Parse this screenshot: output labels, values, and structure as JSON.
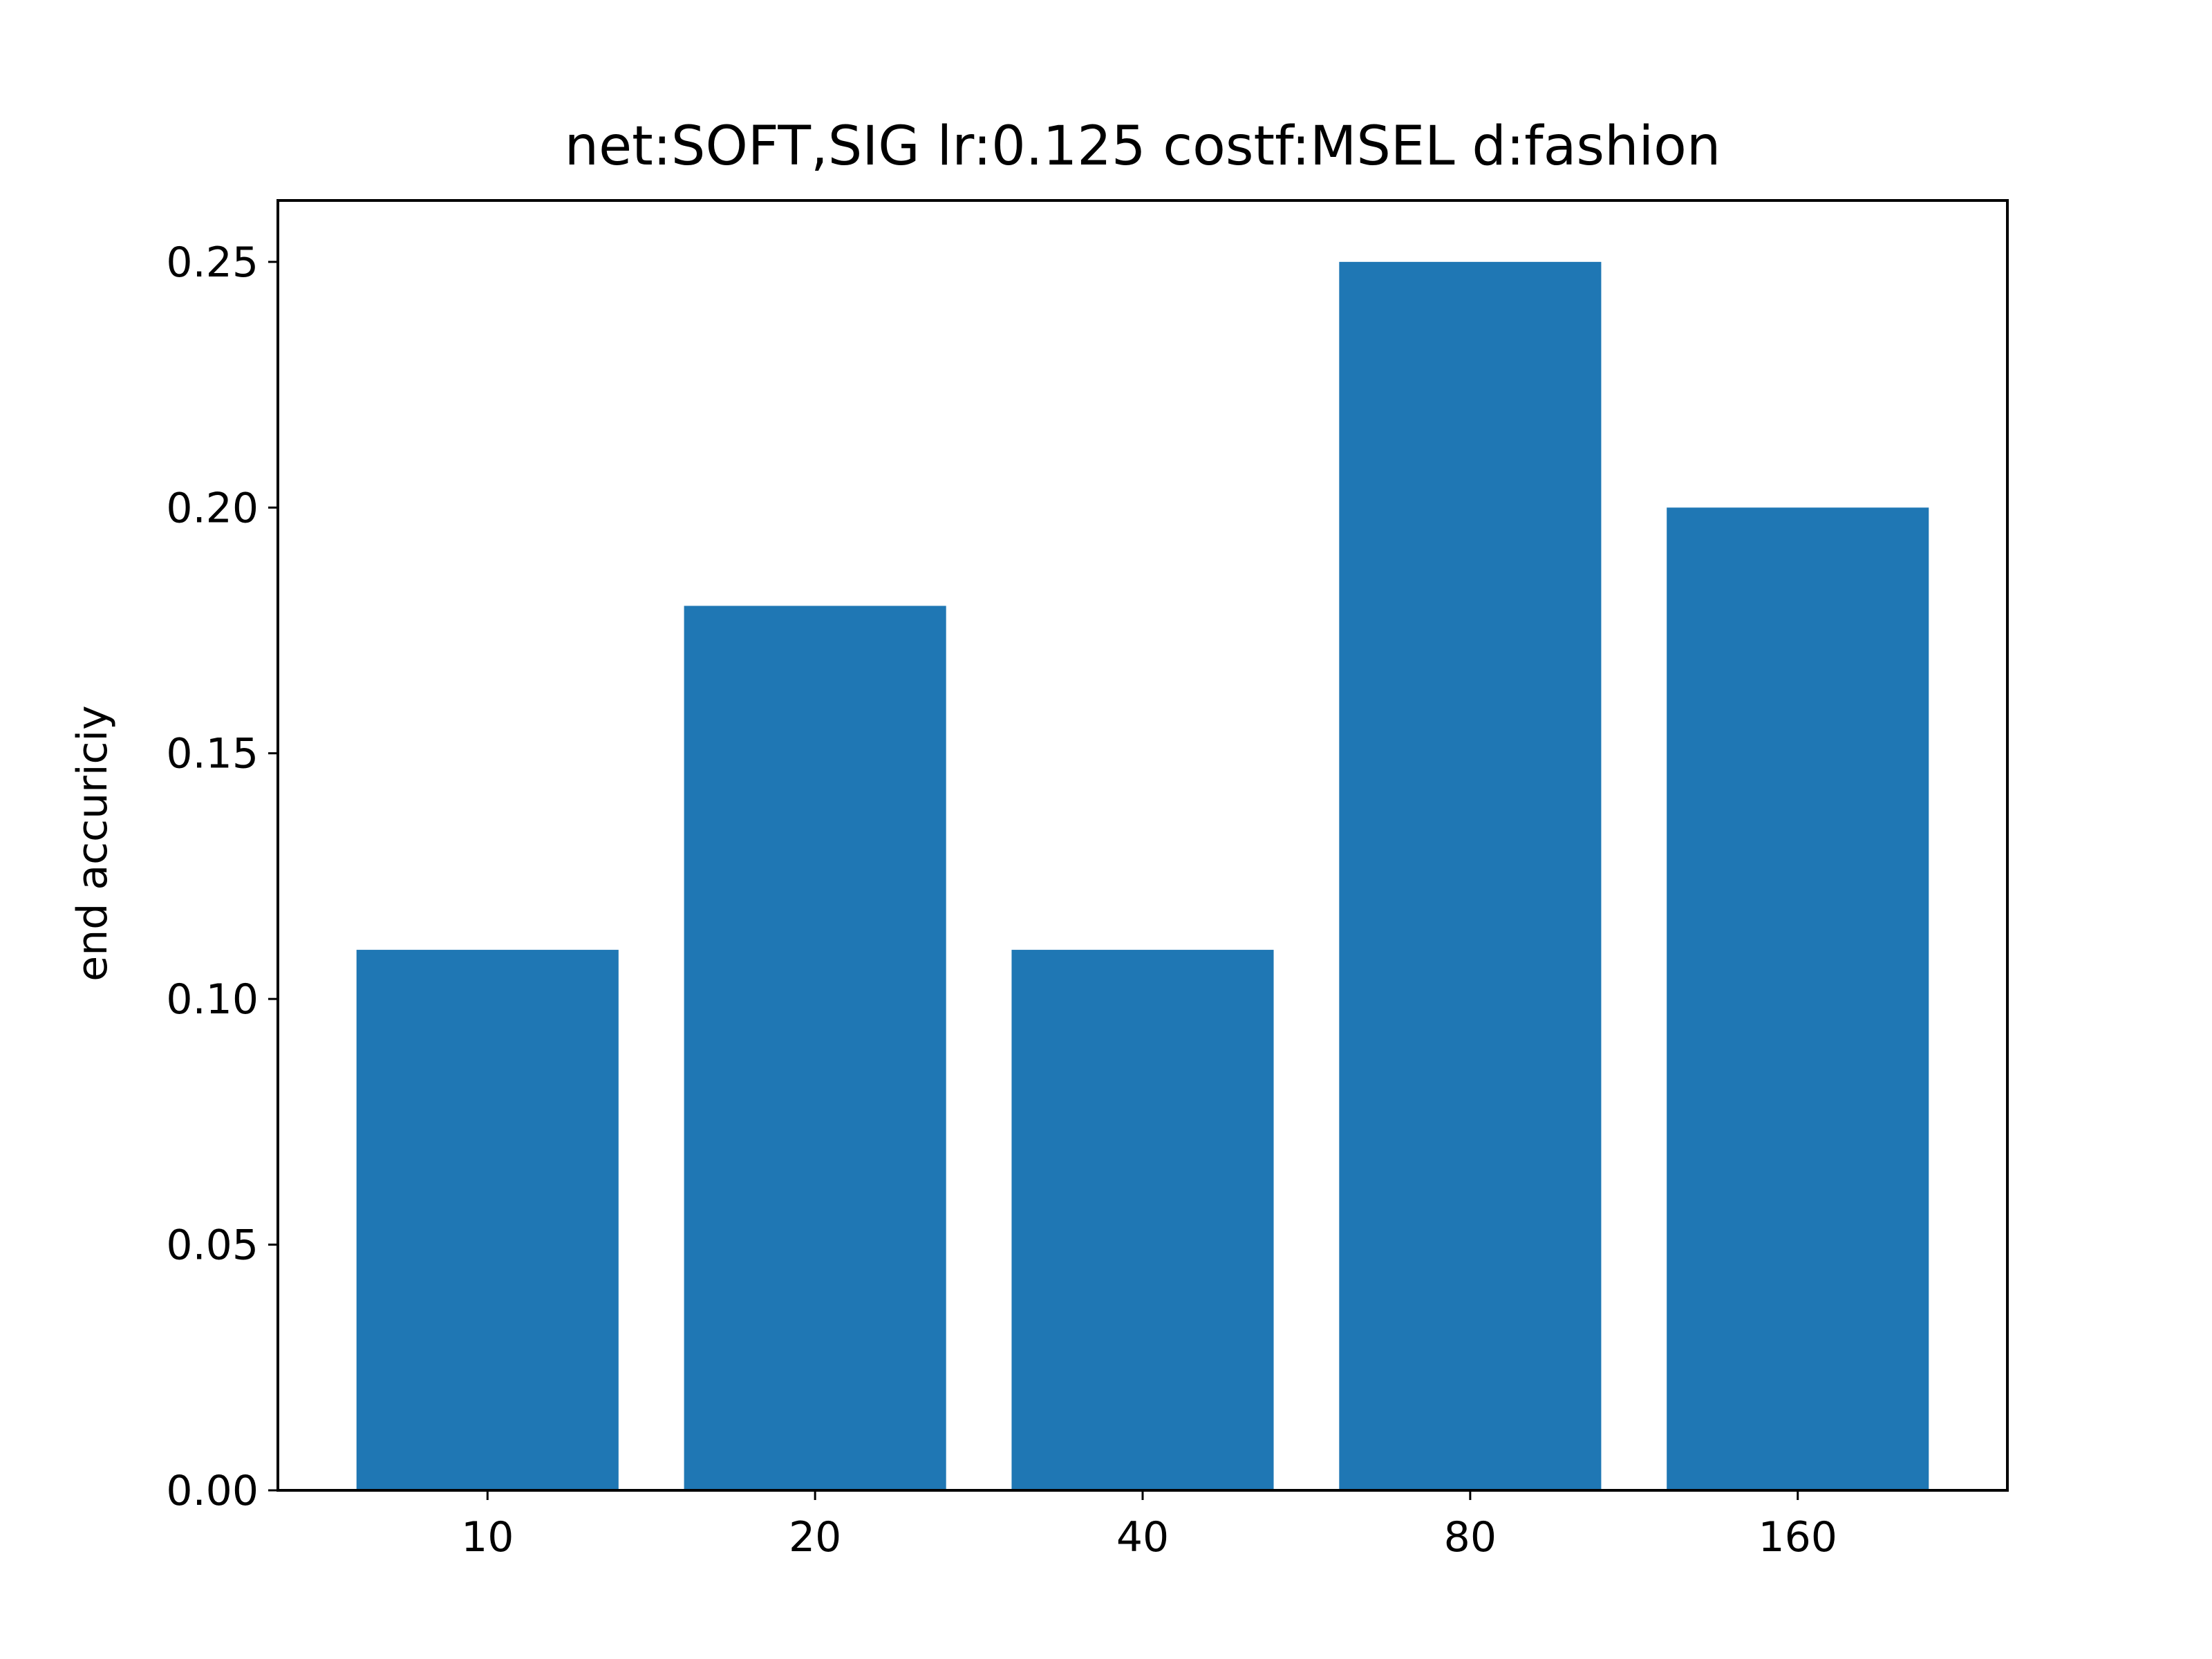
{
  "chart_data": {
    "type": "bar",
    "title": "net:SOFT,SIG lr:0.125 costf:MSEL d:fashion",
    "xlabel": "",
    "ylabel": "end accuriciy",
    "categories": [
      "10",
      "20",
      "40",
      "80",
      "160"
    ],
    "values": [
      0.11,
      0.18,
      0.11,
      0.25,
      0.2
    ],
    "ylim": [
      0,
      0.2625
    ],
    "yticks": [
      0.0,
      0.05,
      0.1,
      0.15,
      0.2,
      0.25
    ],
    "ytick_labels": [
      "0.00",
      "0.05",
      "0.10",
      "0.15",
      "0.20",
      "0.25"
    ],
    "grid": false,
    "bar_color": "#1f77b4"
  }
}
